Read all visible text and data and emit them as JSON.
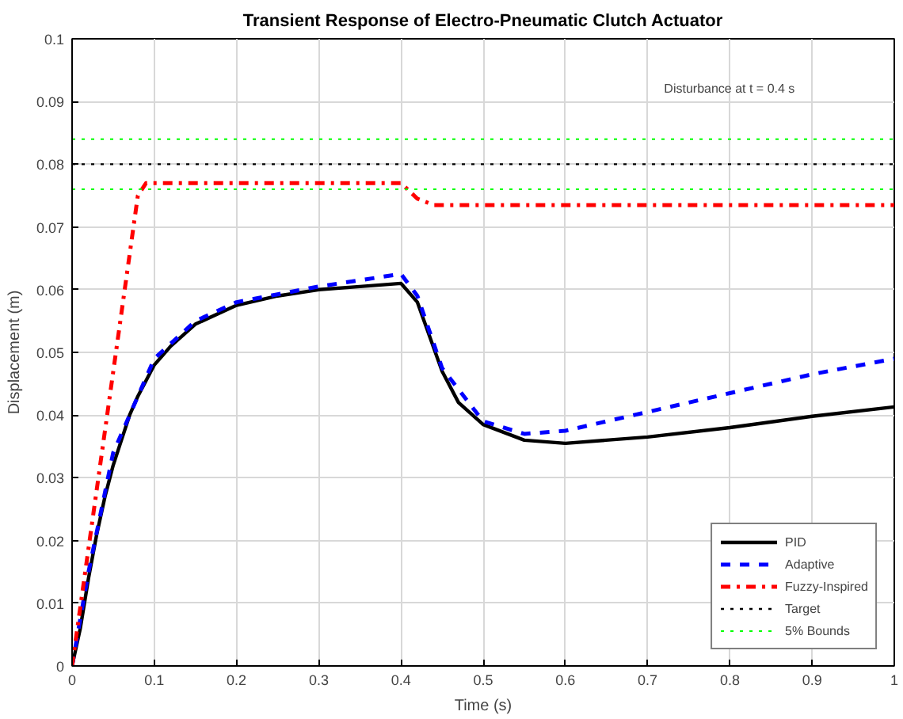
{
  "chart_data": {
    "type": "line",
    "title": "Transient Response of Electro-Pneumatic Clutch Actuator",
    "xlabel": "Time (s)",
    "ylabel": "Displacement (m)",
    "xlim": [
      0,
      1
    ],
    "ylim": [
      0,
      0.1
    ],
    "xticks": [
      0,
      0.1,
      0.2,
      0.3,
      0.4,
      0.5,
      0.6,
      0.7,
      0.8,
      0.9,
      1
    ],
    "yticks": [
      0,
      0.01,
      0.02,
      0.03,
      0.04,
      0.05,
      0.06,
      0.07,
      0.08,
      0.09,
      0.1
    ],
    "grid": true,
    "legend": "bottom right",
    "series": [
      {
        "name": "PID",
        "color": "#000000",
        "line_style": "solid",
        "x": [
          0,
          0.01,
          0.02,
          0.03,
          0.04,
          0.05,
          0.06,
          0.07,
          0.08,
          0.1,
          0.12,
          0.15,
          0.2,
          0.25,
          0.3,
          0.35,
          0.4,
          0.42,
          0.45,
          0.47,
          0.5,
          0.55,
          0.6,
          0.7,
          0.8,
          0.9,
          1.0
        ],
        "values": [
          0,
          0.006,
          0.014,
          0.021,
          0.027,
          0.032,
          0.036,
          0.04,
          0.043,
          0.048,
          0.051,
          0.0545,
          0.0575,
          0.059,
          0.06,
          0.0605,
          0.061,
          0.058,
          0.047,
          0.042,
          0.0385,
          0.036,
          0.0355,
          0.0365,
          0.038,
          0.0398,
          0.0413
        ]
      },
      {
        "name": "Adaptive",
        "color": "#0000ff",
        "line_style": "dashed",
        "x": [
          0,
          0.02,
          0.05,
          0.1,
          0.15,
          0.2,
          0.3,
          0.4,
          0.42,
          0.45,
          0.5,
          0.55,
          0.6,
          0.7,
          0.8,
          0.9,
          1.0
        ],
        "values": [
          0,
          0.015,
          0.034,
          0.049,
          0.055,
          0.058,
          0.0605,
          0.0625,
          0.059,
          0.0475,
          0.039,
          0.037,
          0.0375,
          0.0405,
          0.0435,
          0.0465,
          0.049
        ]
      },
      {
        "name": "Fuzzy-Inspired",
        "color": "#ff0000",
        "line_style": "dashdot",
        "x": [
          0,
          0.08,
          0.09,
          0.4,
          0.42,
          0.44,
          1.0
        ],
        "values": [
          0,
          0.075,
          0.077,
          0.077,
          0.0745,
          0.0735,
          0.0735
        ]
      }
    ],
    "ref_lines": [
      {
        "axis": "y",
        "value": 0.08,
        "label": "Target",
        "color": "#000000",
        "line_style": "dotted"
      },
      {
        "axis": "y",
        "value": 0.084,
        "label": "5% Bounds",
        "color": "#00ff00",
        "line_style": "dotted"
      },
      {
        "axis": "y",
        "value": 0.076,
        "color": "#00ff00",
        "line_style": "dotted"
      }
    ],
    "annotations": [
      "Disturbance at t = 0.4 s"
    ]
  }
}
